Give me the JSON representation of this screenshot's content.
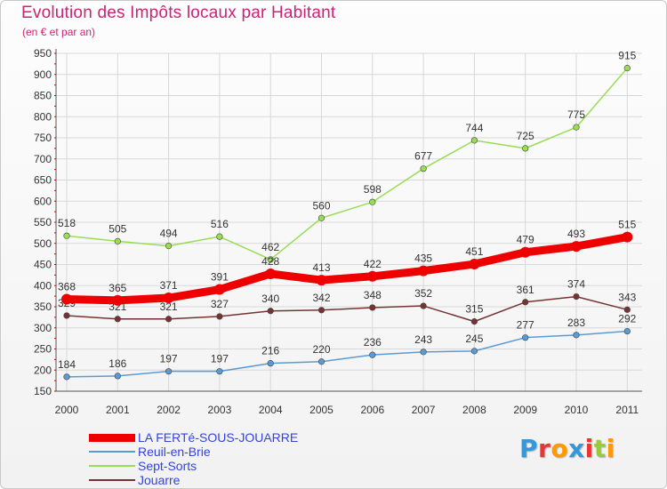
{
  "chart_data": {
    "type": "line",
    "title": "Evolution des Impôts locaux par Habitant",
    "subtitle": "(en € et par an)",
    "xlabel": "",
    "ylabel": "",
    "ylim": [
      150,
      950
    ],
    "y_ticks": [
      150,
      200,
      250,
      300,
      350,
      400,
      450,
      500,
      550,
      600,
      650,
      700,
      750,
      800,
      850,
      900,
      950
    ],
    "grid": true,
    "legend_position": "bottom-left",
    "categories": [
      "2000",
      "2001",
      "2002",
      "2003",
      "2004",
      "2005",
      "2006",
      "2007",
      "2008",
      "2009",
      "2010",
      "2011"
    ],
    "series": [
      {
        "name": "LA FERTé-SOUS-JOUARRE",
        "color": "#ee0000",
        "values": [
          368,
          365,
          371,
          391,
          428,
          413,
          422,
          435,
          451,
          479,
          493,
          515
        ]
      },
      {
        "name": "Reuil-en-Brie",
        "color": "#5b9bd5",
        "values": [
          184,
          186,
          197,
          197,
          216,
          220,
          236,
          243,
          245,
          277,
          283,
          292
        ]
      },
      {
        "name": "Sept-Sorts",
        "color": "#99dd55",
        "values": [
          518,
          505,
          494,
          516,
          462,
          560,
          598,
          677,
          744,
          725,
          775,
          915
        ]
      },
      {
        "name": "Jouarre",
        "color": "#773333",
        "values": [
          329,
          321,
          321,
          327,
          340,
          342,
          348,
          352,
          315,
          361,
          374,
          343
        ]
      }
    ]
  },
  "logo": {
    "letters": [
      {
        "char": "P",
        "color": "#3399dd"
      },
      {
        "char": "r",
        "color": "#ee3333"
      },
      {
        "char": "o",
        "color": "#ff9900"
      },
      {
        "char": "x",
        "color": "#3399dd"
      },
      {
        "char": "i",
        "color": "#ee3333"
      },
      {
        "char": "t",
        "color": "#99cc33"
      },
      {
        "char": "i",
        "color": "#ff9900"
      }
    ]
  }
}
